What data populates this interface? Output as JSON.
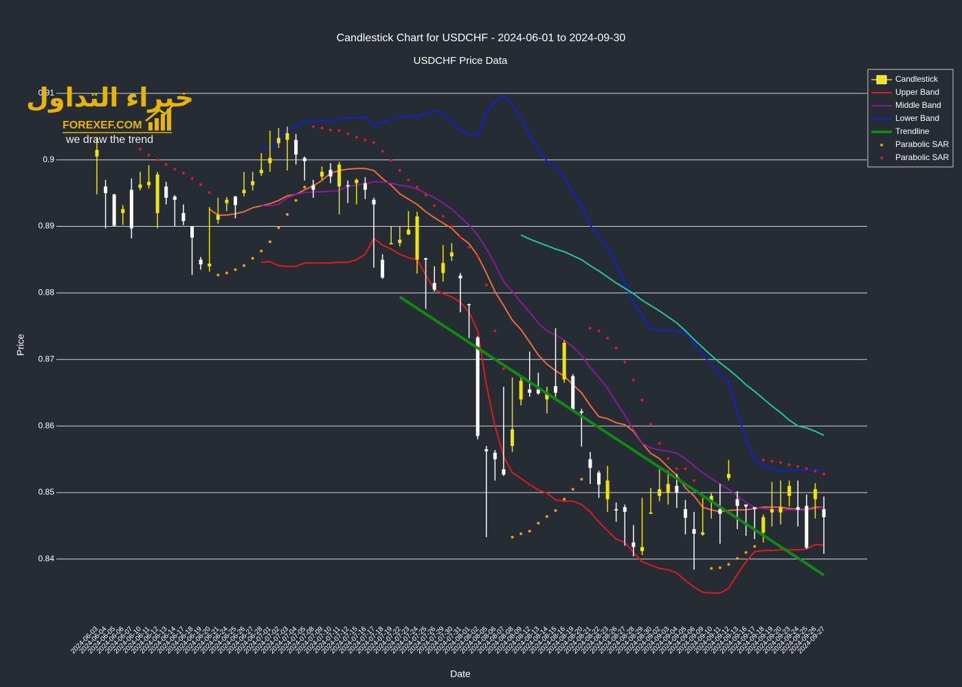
{
  "logo": {
    "arabic": "خبراء التداول",
    "brand": "FOREXEF.COM",
    "tagline": "we draw the trend"
  },
  "chart_data": {
    "type": "candlestick",
    "title": "Candlestick Chart for USDCHF - 2024-06-01 to 2024-09-30",
    "subtitle": "USDCHF Price Data",
    "x_label": "Date",
    "y_label": "Price",
    "ylim": [
      0.8311,
      0.9137
    ],
    "yticks": [
      0.84,
      0.85,
      0.86,
      0.87,
      0.88,
      0.89,
      0.9,
      0.91
    ],
    "grid": true,
    "legend_position": "top-right",
    "categories": [
      "2024-06-03",
      "2024-06-04",
      "2024-06-05",
      "2024-06-06",
      "2024-06-07",
      "2024-06-10",
      "2024-06-11",
      "2024-06-12",
      "2024-06-13",
      "2024-06-14",
      "2024-06-17",
      "2024-06-18",
      "2024-06-19",
      "2024-06-20",
      "2024-06-21",
      "2024-06-24",
      "2024-06-25",
      "2024-06-26",
      "2024-06-27",
      "2024-06-28",
      "2024-07-01",
      "2024-07-02",
      "2024-07-03",
      "2024-07-04",
      "2024-07-05",
      "2024-07-08",
      "2024-07-09",
      "2024-07-10",
      "2024-07-11",
      "2024-07-12",
      "2024-07-15",
      "2024-07-16",
      "2024-07-17",
      "2024-07-18",
      "2024-07-19",
      "2024-07-22",
      "2024-07-23",
      "2024-07-24",
      "2024-07-25",
      "2024-07-26",
      "2024-07-29",
      "2024-07-30",
      "2024-07-31",
      "2024-08-01",
      "2024-08-02",
      "2024-08-05",
      "2024-08-06",
      "2024-08-07",
      "2024-08-08",
      "2024-08-09",
      "2024-08-12",
      "2024-08-13",
      "2024-08-14",
      "2024-08-15",
      "2024-08-16",
      "2024-08-19",
      "2024-08-20",
      "2024-08-21",
      "2024-08-22",
      "2024-08-23",
      "2024-08-26",
      "2024-08-27",
      "2024-08-28",
      "2024-08-29",
      "2024-08-30",
      "2024-09-02",
      "2024-09-03",
      "2024-09-04",
      "2024-09-05",
      "2024-09-06",
      "2024-09-09",
      "2024-09-10",
      "2024-09-11",
      "2024-09-12",
      "2024-09-13",
      "2024-09-16",
      "2024-09-17",
      "2024-09-18",
      "2024-09-19",
      "2024-09-20",
      "2024-09-23",
      "2024-09-24",
      "2024-09-25",
      "2024-09-26",
      "2024-09-27"
    ],
    "candlestick": {
      "name": "Candlestick",
      "increasing_color": "#f2e600",
      "decreasing_color": "#ffffff",
      "open": [
        0.9005,
        0.896,
        0.8948,
        0.892,
        0.8955,
        0.8958,
        0.8962,
        0.892,
        0.896,
        0.8945,
        0.892,
        0.89,
        0.885,
        0.884,
        0.891,
        0.8935,
        0.8945,
        0.895,
        0.8962,
        0.898,
        0.8995,
        0.9025,
        0.903,
        0.903,
        0.9003,
        0.8962,
        0.8975,
        0.8985,
        0.896,
        0.8962,
        0.8965,
        0.8965,
        0.894,
        0.885,
        0.8873,
        0.8875,
        0.8888,
        0.885,
        0.8852,
        0.8815,
        0.883,
        0.8855,
        0.8826,
        0.8783,
        0.8733,
        0.8565,
        0.856,
        0.8535,
        0.857,
        0.864,
        0.8655,
        0.8655,
        0.864,
        0.866,
        0.867,
        0.8675,
        0.8622,
        0.855,
        0.853,
        0.849,
        0.8475,
        0.8478,
        0.8425,
        0.8412,
        0.8468,
        0.8495,
        0.85,
        0.851,
        0.8475,
        0.8445,
        0.8437,
        0.8485,
        0.8475,
        0.8522,
        0.849,
        0.8482,
        0.8478,
        0.844,
        0.847,
        0.847,
        0.8495,
        0.8478,
        0.848,
        0.849,
        0.8475
      ],
      "high": [
        0.9034,
        0.897,
        0.8949,
        0.8932,
        0.8972,
        0.8982,
        0.8992,
        0.8982,
        0.8967,
        0.8947,
        0.8933,
        0.89,
        0.8854,
        0.8929,
        0.8943,
        0.8944,
        0.8946,
        0.8982,
        0.8982,
        0.901,
        0.9044,
        0.9048,
        0.905,
        0.9039,
        0.9005,
        0.897,
        0.899,
        0.8995,
        0.8997,
        0.8969,
        0.8972,
        0.8974,
        0.8943,
        0.8858,
        0.89,
        0.89,
        0.8923,
        0.8922,
        0.8853,
        0.884,
        0.8872,
        0.8875,
        0.883,
        0.8784,
        0.8735,
        0.857,
        0.8564,
        0.8659,
        0.8673,
        0.8673,
        0.8712,
        0.868,
        0.8659,
        0.8747,
        0.8729,
        0.8678,
        0.8626,
        0.8561,
        0.8533,
        0.854,
        0.8485,
        0.8482,
        0.8451,
        0.8492,
        0.8507,
        0.8535,
        0.8533,
        0.8528,
        0.8489,
        0.8471,
        0.8492,
        0.8499,
        0.8513,
        0.8549,
        0.8502,
        0.8482,
        0.8477,
        0.8467,
        0.8516,
        0.8518,
        0.8518,
        0.8518,
        0.8497,
        0.8514,
        0.8494
      ],
      "low": [
        0.8948,
        0.8897,
        0.89,
        0.8902,
        0.8882,
        0.8954,
        0.8957,
        0.8897,
        0.8933,
        0.89,
        0.8902,
        0.8827,
        0.8835,
        0.8832,
        0.8904,
        0.8923,
        0.8912,
        0.8945,
        0.8954,
        0.8976,
        0.8982,
        0.9018,
        0.8984,
        0.8993,
        0.8969,
        0.8943,
        0.897,
        0.8965,
        0.8918,
        0.8935,
        0.8933,
        0.8941,
        0.8838,
        0.8821,
        0.8873,
        0.887,
        0.8887,
        0.8829,
        0.8776,
        0.8802,
        0.8817,
        0.8848,
        0.8771,
        0.8732,
        0.858,
        0.8433,
        0.8518,
        0.8525,
        0.8561,
        0.8631,
        0.8644,
        0.8647,
        0.8619,
        0.8644,
        0.8665,
        0.8623,
        0.8569,
        0.8513,
        0.8492,
        0.8471,
        0.8456,
        0.842,
        0.8404,
        0.8406,
        0.8468,
        0.8487,
        0.8482,
        0.8477,
        0.8437,
        0.8384,
        0.8435,
        0.8461,
        0.8423,
        0.8518,
        0.8445,
        0.8435,
        0.843,
        0.8425,
        0.8449,
        0.8452,
        0.8479,
        0.8449,
        0.8415,
        0.8461,
        0.8408
      ],
      "close": [
        0.9015,
        0.895,
        0.8901,
        0.8926,
        0.8897,
        0.8963,
        0.8967,
        0.8978,
        0.8943,
        0.894,
        0.8908,
        0.8883,
        0.8843,
        0.8844,
        0.8917,
        0.894,
        0.8932,
        0.8955,
        0.8968,
        0.8985,
        0.9003,
        0.9033,
        0.904,
        0.9008,
        0.8998,
        0.8955,
        0.8982,
        0.8975,
        0.8993,
        0.896,
        0.897,
        0.8955,
        0.8933,
        0.8823,
        0.8875,
        0.888,
        0.8895,
        0.8915,
        0.885,
        0.8805,
        0.8845,
        0.8861,
        0.8822,
        0.8782,
        0.8585,
        0.8562,
        0.855,
        0.8527,
        0.8595,
        0.8668,
        0.865,
        0.8649,
        0.865,
        0.865,
        0.8725,
        0.8625,
        0.862,
        0.8537,
        0.8512,
        0.8518,
        0.8473,
        0.8471,
        0.8418,
        0.8418,
        0.847,
        0.8505,
        0.8513,
        0.85,
        0.8462,
        0.8438,
        0.844,
        0.8495,
        0.8468,
        0.8528,
        0.848,
        0.8479,
        0.8475,
        0.8463,
        0.8475,
        0.8478,
        0.851,
        0.8474,
        0.8417,
        0.8505,
        0.8463
      ]
    },
    "series": [
      {
        "name": "Upper Band",
        "color": "#e41a1a",
        "mode": "lines",
        "values": [
          null,
          null,
          null,
          null,
          null,
          null,
          null,
          null,
          null,
          null,
          null,
          null,
          null,
          null,
          null,
          null,
          null,
          null,
          null,
          0.8846,
          0.8847,
          0.8841,
          0.884,
          0.884,
          0.8845,
          0.8845,
          0.8845,
          0.8845,
          0.8846,
          0.8846,
          0.885,
          0.8858,
          0.8882,
          0.8872,
          0.8866,
          0.8858,
          0.8853,
          0.885,
          0.8827,
          0.8805,
          0.8799,
          0.8794,
          0.8786,
          0.8771,
          0.8743,
          0.8662,
          0.86,
          0.8554,
          0.853,
          0.8521,
          0.8512,
          0.8504,
          0.8499,
          0.8489,
          0.8487,
          0.8487,
          0.8482,
          0.8471,
          0.8456,
          0.8443,
          0.843,
          0.8425,
          0.841,
          0.8396,
          0.8391,
          0.8386,
          0.8384,
          0.8379,
          0.8368,
          0.8358,
          0.835,
          0.8349,
          0.8349,
          0.8356,
          0.8377,
          0.8396,
          0.8411,
          0.8413,
          0.8413,
          0.8414,
          0.8414,
          0.8414,
          0.8415,
          0.8422,
          0.8421
        ]
      },
      {
        "color": "#f26b3a",
        "mode": "lines",
        "values": [
          null,
          null,
          null,
          null,
          null,
          null,
          null,
          null,
          null,
          null,
          null,
          null,
          null,
          0.8926,
          0.8917,
          0.8917,
          0.8919,
          0.8922,
          0.8928,
          0.8931,
          0.8934,
          0.8939,
          0.8946,
          0.8948,
          0.8955,
          0.8961,
          0.8969,
          0.898,
          0.8984,
          0.8986,
          0.8987,
          0.8987,
          0.8984,
          0.8972,
          0.8962,
          0.8949,
          0.8941,
          0.8933,
          0.8922,
          0.8913,
          0.8905,
          0.8897,
          0.8884,
          0.8874,
          0.8856,
          0.883,
          0.8802,
          0.8781,
          0.8759,
          0.8745,
          0.8726,
          0.8707,
          0.8693,
          0.8683,
          0.8675,
          0.8662,
          0.865,
          0.8631,
          0.8614,
          0.8611,
          0.8605,
          0.8602,
          0.8592,
          0.8574,
          0.8559,
          0.8551,
          0.8538,
          0.8526,
          0.8507,
          0.8495,
          0.8478,
          0.8474,
          0.8471,
          0.8473,
          0.8474,
          0.8474,
          0.8476,
          0.8478,
          0.8478,
          0.8478,
          0.8476,
          0.8475,
          0.8474,
          0.8478,
          0.8478
        ]
      },
      {
        "name": "Middle Band",
        "color": "#8b1a9a",
        "mode": "lines",
        "values": [
          null,
          null,
          null,
          null,
          null,
          null,
          null,
          null,
          null,
          null,
          null,
          null,
          null,
          null,
          null,
          null,
          null,
          null,
          null,
          0.8931,
          0.8931,
          0.8933,
          0.8943,
          0.8948,
          0.8951,
          0.8952,
          0.8952,
          0.8953,
          0.8954,
          0.896,
          0.8962,
          0.8964,
          0.8967,
          0.8967,
          0.8965,
          0.8962,
          0.896,
          0.8956,
          0.895,
          0.8943,
          0.8935,
          0.8926,
          0.8914,
          0.8902,
          0.8887,
          0.8867,
          0.8843,
          0.8817,
          0.8802,
          0.8786,
          0.8771,
          0.8755,
          0.8743,
          0.8737,
          0.8729,
          0.8719,
          0.8706,
          0.8688,
          0.8673,
          0.8657,
          0.8636,
          0.8616,
          0.8595,
          0.8574,
          0.8567,
          0.8564,
          0.8562,
          0.8559,
          0.8551,
          0.854,
          0.853,
          0.8521,
          0.8513,
          0.8505,
          0.8495,
          0.8485,
          0.8478,
          0.8476,
          0.8474,
          0.8473,
          0.8474,
          0.8474,
          0.8473,
          0.8476,
          0.8478
        ]
      },
      {
        "name": "Lower Band",
        "color": "#1020d8",
        "mode": "lines",
        "values": [
          null,
          null,
          null,
          null,
          null,
          null,
          null,
          null,
          null,
          null,
          null,
          null,
          null,
          null,
          null,
          null,
          null,
          null,
          null,
          0.9019,
          0.9017,
          0.9031,
          0.9044,
          0.9051,
          0.9058,
          0.9058,
          0.9058,
          0.9058,
          0.9062,
          0.9063,
          0.9064,
          0.9064,
          0.9051,
          0.9057,
          0.9061,
          0.9064,
          0.9065,
          0.9066,
          0.9069,
          0.9074,
          0.9069,
          0.9057,
          0.9044,
          0.9038,
          0.9036,
          0.9072,
          0.9088,
          0.9096,
          0.9083,
          0.9063,
          0.9037,
          0.9015,
          0.8998,
          0.899,
          0.8974,
          0.8951,
          0.8931,
          0.8902,
          0.8884,
          0.8869,
          0.8843,
          0.8814,
          0.8786,
          0.8765,
          0.8745,
          0.8744,
          0.8744,
          0.8743,
          0.874,
          0.8724,
          0.8708,
          0.8691,
          0.8678,
          0.8667,
          0.8621,
          0.858,
          0.8549,
          0.8541,
          0.8536,
          0.8531,
          0.8534,
          0.8534,
          0.8534,
          0.8534,
          0.8534
        ]
      },
      {
        "color": "#1fc9a0",
        "mode": "lines",
        "values": [
          null,
          null,
          null,
          null,
          null,
          null,
          null,
          null,
          null,
          null,
          null,
          null,
          null,
          null,
          null,
          null,
          null,
          null,
          null,
          null,
          null,
          null,
          null,
          null,
          null,
          null,
          null,
          null,
          null,
          null,
          null,
          null,
          null,
          null,
          null,
          null,
          null,
          null,
          null,
          null,
          null,
          null,
          null,
          null,
          null,
          null,
          null,
          null,
          null,
          0.8887,
          0.8881,
          0.8876,
          0.8871,
          0.8866,
          0.8862,
          0.8856,
          0.885,
          0.8841,
          0.8833,
          0.8824,
          0.8815,
          0.8807,
          0.8799,
          0.8789,
          0.8781,
          0.8773,
          0.8764,
          0.8755,
          0.8743,
          0.873,
          0.8718,
          0.8706,
          0.8695,
          0.8685,
          0.8674,
          0.8662,
          0.8652,
          0.8641,
          0.863,
          0.862,
          0.8609,
          0.86,
          0.8597,
          0.8592,
          0.8586
        ]
      },
      {
        "name": "Parabolic SAR",
        "color": "#f5a000",
        "mode": "markers",
        "values": [
          null,
          null,
          null,
          null,
          null,
          null,
          null,
          null,
          null,
          null,
          null,
          null,
          null,
          null,
          0.8827,
          0.883,
          0.8835,
          0.8841,
          0.8852,
          0.8863,
          0.8877,
          0.8898,
          0.8918,
          0.8939,
          0.8959,
          null,
          null,
          null,
          null,
          null,
          null,
          null,
          null,
          null,
          null,
          null,
          null,
          null,
          null,
          null,
          null,
          null,
          null,
          null,
          null,
          null,
          null,
          null,
          0.8433,
          0.8438,
          0.8442,
          0.8454,
          0.8464,
          0.8473,
          0.849,
          0.8505,
          0.852,
          null,
          null,
          null,
          null,
          null,
          null,
          null,
          null,
          null,
          null,
          null,
          null,
          null,
          null,
          0.8386,
          0.8387,
          0.8392,
          0.8401,
          0.841,
          0.8419,
          null,
          null,
          null,
          null,
          null,
          null,
          null,
          null
        ]
      },
      {
        "name": "Parabolic SAR",
        "color": "#e41a1a",
        "mode": "markers",
        "values": [
          null,
          null,
          null,
          null,
          null,
          0.9016,
          0.9007,
          0.9,
          0.8993,
          0.8986,
          0.898,
          0.8972,
          0.8963,
          0.8951,
          null,
          null,
          null,
          null,
          null,
          null,
          null,
          null,
          null,
          null,
          null,
          0.905,
          0.9048,
          0.9045,
          0.9044,
          0.9039,
          0.9034,
          0.903,
          0.9026,
          0.9013,
          0.8999,
          0.8984,
          0.897,
          0.8959,
          0.8947,
          0.8931,
          0.8915,
          0.89,
          0.8884,
          0.8869,
          0.8855,
          0.8812,
          0.8743,
          0.8686,
          null,
          null,
          null,
          null,
          null,
          null,
          null,
          null,
          null,
          0.8747,
          0.8743,
          0.8732,
          0.8717,
          0.8696,
          0.8669,
          0.8639,
          0.8603,
          0.8574,
          0.8551,
          0.8536,
          0.8536,
          0.8518,
          null,
          null,
          null,
          null,
          null,
          null,
          null,
          0.8549,
          0.8547,
          0.8545,
          0.8542,
          0.8539,
          0.8536,
          0.8532,
          0.8528
        ]
      }
    ],
    "trendline": {
      "name": "Trendline",
      "color": "#0f8a12",
      "x": [
        "2024-07-22",
        "2024-09-27"
      ],
      "values": [
        0.8794,
        0.8376
      ]
    }
  }
}
